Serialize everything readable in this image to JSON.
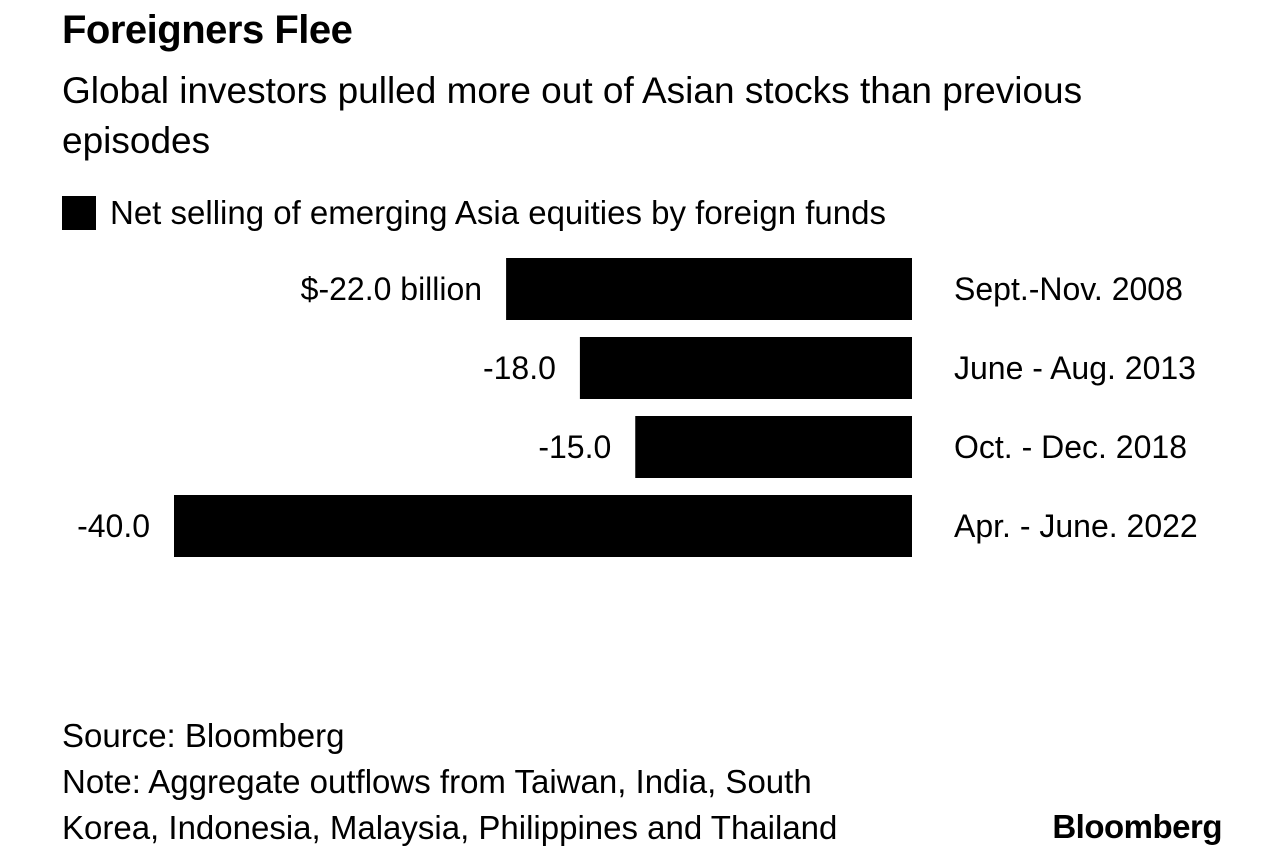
{
  "chart_data": {
    "type": "bar",
    "orientation": "horizontal",
    "title": "Foreigners Flee",
    "subtitle": "Global investors pulled more out of Asian stocks than previous episodes",
    "legend": {
      "placement": "top-left"
    },
    "categories": [
      "Sept.-Nov. 2008",
      "June - Aug. 2013",
      "Oct. - Dec. 2018",
      "Apr. - June. 2022"
    ],
    "series": [
      {
        "name": "Net selling of emerging Asia equities by foreign funds",
        "values": [
          -22.0,
          -18.0,
          -15.0,
          -40.0
        ],
        "data_labels": [
          "$-22.0 billion",
          "-18.0",
          "-15.0",
          "-40.0"
        ],
        "color": "#000000"
      }
    ],
    "xlim": [
      -40,
      0
    ],
    "grid": false,
    "axis_visible": false
  },
  "footer": {
    "source": "Source: Bloomberg",
    "note_line1": "Note: Aggregate outflows from Taiwan, India, South",
    "note_line2": "Korea, Indonesia, Malaysia, Philippines and Thailand"
  },
  "brand": "Bloomberg"
}
